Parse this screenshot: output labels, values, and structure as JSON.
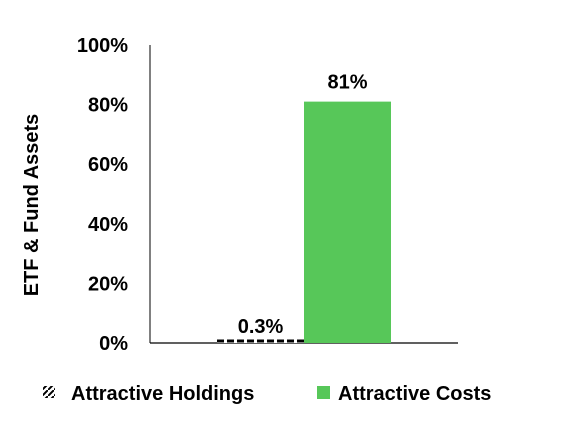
{
  "chart_data": {
    "type": "bar",
    "categories": [
      "Attractive Holdings",
      "Attractive Costs"
    ],
    "values": [
      0.3,
      81
    ],
    "data_labels": [
      "0.3%",
      "81%"
    ],
    "ylabel": "ETF & Fund Assets",
    "ylim": [
      0,
      100
    ],
    "y_ticks": [
      0,
      20,
      40,
      60,
      80,
      100
    ],
    "y_tick_labels": [
      "0%",
      "20%",
      "40%",
      "60%",
      "80%",
      "100%"
    ],
    "grid": false,
    "legend_position": "bottom",
    "legend": [
      {
        "label": "Attractive Holdings",
        "style": "dashed-hatch",
        "color": "#000000"
      },
      {
        "label": "Attractive Costs",
        "style": "solid",
        "color": "#57C759"
      }
    ],
    "colors": {
      "holdings": "#000000",
      "costs": "#57C759"
    }
  }
}
